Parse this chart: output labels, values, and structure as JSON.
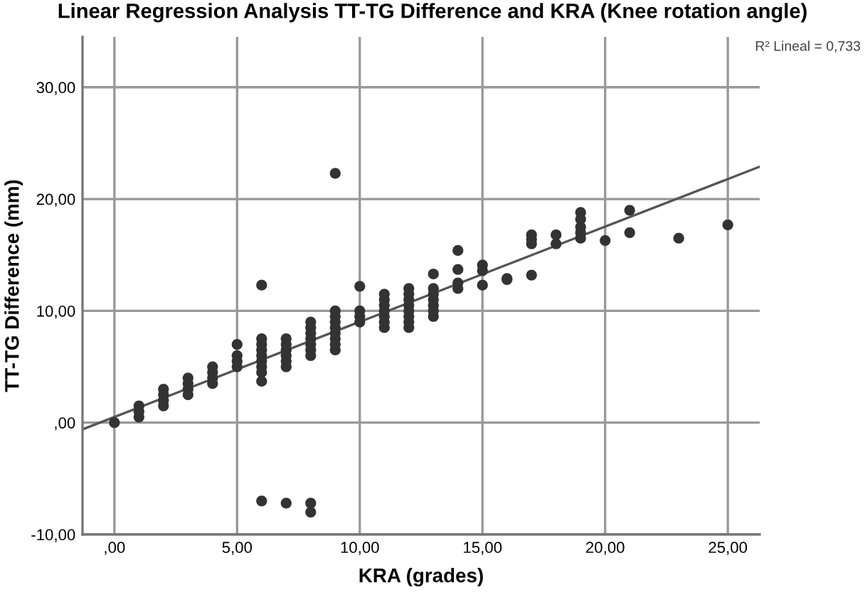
{
  "chart_data": {
    "type": "scatter",
    "title": "Linear Regression Analysis TT-TG Difference and KRA (Knee rotation angle)",
    "xlabel": "KRA (grades)",
    "ylabel": "TT-TG Difference (mm)",
    "annotations": [
      "R² Lineal = 0,733"
    ],
    "xlim": [
      -1.3,
      26.3
    ],
    "ylim": [
      -10,
      34.5
    ],
    "xticks": [
      {
        "value": 0,
        "label": ",00"
      },
      {
        "value": 5,
        "label": "5,00"
      },
      {
        "value": 10,
        "label": "10,00"
      },
      {
        "value": 15,
        "label": "15,00"
      },
      {
        "value": 20,
        "label": "20,00"
      },
      {
        "value": 25,
        "label": "25,00"
      }
    ],
    "yticks": [
      {
        "value": -10,
        "label": "-10,00"
      },
      {
        "value": 0,
        "label": ",00"
      },
      {
        "value": 10,
        "label": "10,00"
      },
      {
        "value": 20,
        "label": "20,00"
      },
      {
        "value": 30,
        "label": "30,00"
      }
    ],
    "grid": true,
    "legend": false,
    "series": [
      {
        "color": "#333333",
        "marker": "circle",
        "x": [
          0,
          1,
          1,
          1,
          2,
          2,
          2,
          2,
          3,
          3,
          3,
          3,
          4,
          4,
          4,
          4,
          5,
          5,
          5,
          5,
          6,
          6,
          6,
          6,
          6,
          6,
          6,
          6,
          6,
          6,
          7,
          7,
          7,
          7,
          7,
          7,
          7,
          8,
          8,
          8,
          8,
          8,
          8,
          8,
          8,
          8,
          9,
          9,
          9,
          9,
          9,
          9,
          9,
          9,
          9,
          10,
          10,
          10,
          10,
          11,
          11,
          11,
          11,
          11,
          11,
          11,
          12,
          12,
          12,
          12,
          12,
          12,
          12,
          12,
          13,
          13,
          13,
          13,
          13,
          13,
          13,
          14,
          14,
          14,
          14,
          15,
          15,
          15,
          16,
          16,
          17,
          17,
          17,
          17,
          18,
          18,
          19,
          19,
          19,
          19,
          19,
          20,
          21,
          21,
          23,
          25
        ],
        "values": [
          0,
          0.5,
          1,
          1.5,
          1.5,
          2,
          2.5,
          3,
          2.5,
          3,
          3.5,
          4,
          3.5,
          4,
          4.5,
          5,
          5,
          5.5,
          6,
          7,
          12.3,
          7.5,
          7,
          6.5,
          6,
          5.5,
          5,
          4.5,
          3.7,
          -7,
          -7.2,
          5,
          5.5,
          6,
          6.5,
          7,
          7.5,
          -7.2,
          -8,
          6,
          6.5,
          7,
          7.5,
          8,
          8.5,
          9,
          22.3,
          6.5,
          7,
          7.5,
          8,
          8.5,
          9,
          9.5,
          10,
          12.2,
          10,
          9.5,
          9,
          8.5,
          9,
          9.5,
          10,
          10.5,
          11,
          11.5,
          8.5,
          9,
          9.5,
          10,
          10.5,
          11,
          11.5,
          12,
          9.5,
          10,
          10.5,
          11,
          11.5,
          12,
          13.3,
          15.4,
          13.7,
          12.5,
          12,
          14.1,
          13.6,
          12.3,
          12.9,
          12.8,
          13.2,
          16,
          16.4,
          16.8,
          16,
          16.8,
          16.5,
          17,
          17.5,
          18.2,
          18.8,
          16.3,
          17,
          19,
          16.5,
          17.7
        ]
      },
      {
        "type": "line",
        "color": "#555555",
        "x": [
          -1.3,
          26.3
        ],
        "values": [
          -0.6,
          22.9
        ]
      }
    ]
  }
}
